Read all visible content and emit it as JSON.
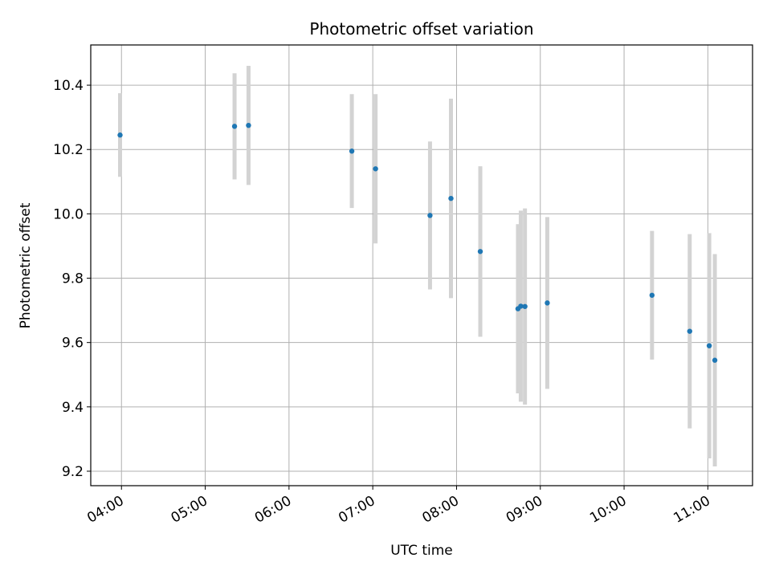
{
  "chart_data": {
    "type": "scatter",
    "title": "Photometric offset variation",
    "xlabel": "UTC time",
    "ylabel": "Photometric offset",
    "xlim": [
      "03:38",
      "11:32"
    ],
    "ylim": [
      9.155,
      10.525
    ],
    "x_ticks": [
      "04:00",
      "05:00",
      "06:00",
      "07:00",
      "08:00",
      "09:00",
      "10:00",
      "11:00"
    ],
    "y_ticks": [
      9.2,
      9.4,
      9.6,
      9.8,
      10.0,
      10.2,
      10.4
    ],
    "y_tick_labels": [
      "9.2",
      "9.4",
      "9.6",
      "9.8",
      "10.0",
      "10.2",
      "10.4"
    ],
    "grid": true,
    "colors": {
      "marker": "#1f77b4",
      "errorbar": "#d3d3d3",
      "grid": "#b0b0b0"
    },
    "points": [
      {
        "x": "03:59",
        "y": 10.245,
        "err": 0.13
      },
      {
        "x": "05:21",
        "y": 10.272,
        "err": 0.165
      },
      {
        "x": "05:31",
        "y": 10.275,
        "err": 0.185
      },
      {
        "x": "06:45",
        "y": 10.195,
        "err": 0.177
      },
      {
        "x": "07:02",
        "y": 10.14,
        "err": 0.232
      },
      {
        "x": "07:41",
        "y": 9.995,
        "err": 0.23
      },
      {
        "x": "07:56",
        "y": 10.048,
        "err": 0.31
      },
      {
        "x": "08:17",
        "y": 9.883,
        "err": 0.265
      },
      {
        "x": "08:44",
        "y": 9.705,
        "err": 0.263
      },
      {
        "x": "08:46",
        "y": 9.713,
        "err": 0.297
      },
      {
        "x": "08:49",
        "y": 9.712,
        "err": 0.305
      },
      {
        "x": "09:05",
        "y": 9.723,
        "err": 0.267
      },
      {
        "x": "10:20",
        "y": 9.747,
        "err": 0.2
      },
      {
        "x": "10:47",
        "y": 9.635,
        "err": 0.302
      },
      {
        "x": "11:01",
        "y": 9.59,
        "err": 0.35
      },
      {
        "x": "11:05",
        "y": 9.545,
        "err": 0.33
      }
    ]
  }
}
